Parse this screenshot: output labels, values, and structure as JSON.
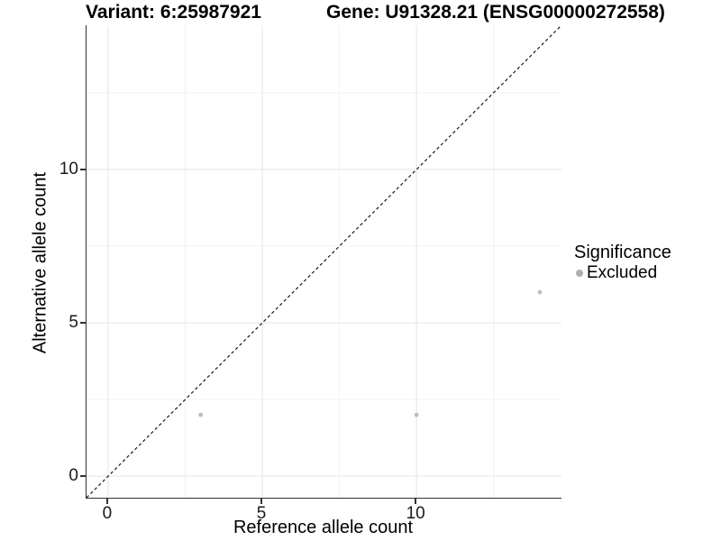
{
  "chart_data": {
    "type": "scatter",
    "title_left": "Variant: 6:25987921",
    "title_right": "Gene: U91328.21 (ENSG00000272558)",
    "xlabel": "Reference allele count",
    "ylabel": "Alternative allele count",
    "xlim": [
      -0.7,
      14.7
    ],
    "ylim": [
      -0.7,
      14.7
    ],
    "x_ticks": [
      0,
      5,
      10
    ],
    "y_ticks": [
      0,
      5,
      10
    ],
    "x_minor_ticks": [
      2.5,
      7.5,
      12.5
    ],
    "y_minor_ticks": [
      2.5,
      7.5,
      12.5
    ],
    "grid": true,
    "legend_position": "right",
    "reference_line": {
      "style": "dashed",
      "slope": 1,
      "intercept": 0,
      "color": "#1a1a1a"
    },
    "series": [
      {
        "name": "Excluded",
        "color": "#bcbcbc",
        "points": [
          {
            "x": 3,
            "y": 2
          },
          {
            "x": 10,
            "y": 2
          },
          {
            "x": 14,
            "y": 6
          }
        ]
      }
    ],
    "legend": {
      "title": "Significance",
      "entries": [
        {
          "label": "Excluded",
          "color": "#b0b0b0"
        }
      ]
    },
    "colors": {
      "background": "#ffffff",
      "major_grid": "#e5e5e5",
      "minor_grid": "#f2f2f2",
      "axis_line": "#333333",
      "tick_text": "#1a1a1a"
    }
  }
}
